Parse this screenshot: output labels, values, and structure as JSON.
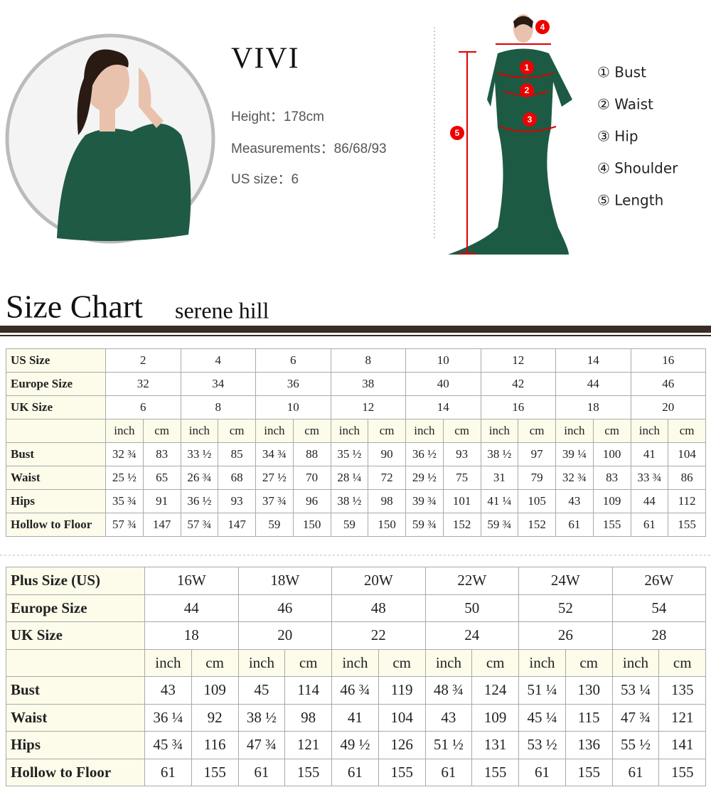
{
  "model": {
    "name": "VIVI",
    "lines": [
      "Height：178cm",
      "Measurements：86/68/93",
      "US size：6"
    ]
  },
  "diagram": {
    "markers": [
      "1",
      "2",
      "3",
      "4",
      "5"
    ],
    "legend": [
      "① Bust",
      "② Waist",
      "③ Hip",
      "④ Shoulder",
      "⑤ Length"
    ]
  },
  "heading": {
    "title": "Size Chart",
    "subtitle": "serene hill"
  },
  "table1": {
    "header_rows": [
      {
        "label": "US Size",
        "values": [
          "2",
          "4",
          "6",
          "8",
          "10",
          "12",
          "14",
          "16"
        ]
      },
      {
        "label": "Europe Size",
        "values": [
          "32",
          "34",
          "36",
          "38",
          "40",
          "42",
          "44",
          "46"
        ]
      },
      {
        "label": "UK Size",
        "values": [
          "6",
          "8",
          "10",
          "12",
          "14",
          "16",
          "18",
          "20"
        ]
      }
    ],
    "unit_row": [
      "inch",
      "cm",
      "inch",
      "cm",
      "inch",
      "cm",
      "inch",
      "cm",
      "inch",
      "cm",
      "inch",
      "cm",
      "inch",
      "cm",
      "inch",
      "cm"
    ],
    "rows": [
      {
        "label": "Bust",
        "values": [
          "32 ¾",
          "83",
          "33 ½",
          "85",
          "34 ¾",
          "88",
          "35 ½",
          "90",
          "36 ½",
          "93",
          "38 ½",
          "97",
          "39 ¼",
          "100",
          "41",
          "104"
        ]
      },
      {
        "label": "Waist",
        "values": [
          "25 ½",
          "65",
          "26 ¾",
          "68",
          "27 ½",
          "70",
          "28 ¼",
          "72",
          "29 ½",
          "75",
          "31",
          "79",
          "32 ¾",
          "83",
          "33 ¾",
          "86"
        ]
      },
      {
        "label": "Hips",
        "values": [
          "35 ¾",
          "91",
          "36 ½",
          "93",
          "37 ¾",
          "96",
          "38 ½",
          "98",
          "39 ¾",
          "101",
          "41 ¼",
          "105",
          "43",
          "109",
          "44",
          "112"
        ]
      },
      {
        "label": "Hollow to Floor",
        "values": [
          "57 ¾",
          "147",
          "57 ¾",
          "147",
          "59",
          "150",
          "59",
          "150",
          "59 ¾",
          "152",
          "59 ¾",
          "152",
          "61",
          "155",
          "61",
          "155"
        ]
      }
    ]
  },
  "table2": {
    "header_rows": [
      {
        "label": "Plus Size (US)",
        "values": [
          "16W",
          "18W",
          "20W",
          "22W",
          "24W",
          "26W"
        ]
      },
      {
        "label": "Europe Size",
        "values": [
          "44",
          "46",
          "48",
          "50",
          "52",
          "54"
        ]
      },
      {
        "label": "UK Size",
        "values": [
          "18",
          "20",
          "22",
          "24",
          "26",
          "28"
        ]
      }
    ],
    "unit_row": [
      "inch",
      "cm",
      "inch",
      "cm",
      "inch",
      "cm",
      "inch",
      "cm",
      "inch",
      "cm",
      "inch",
      "cm"
    ],
    "rows": [
      {
        "label": "Bust",
        "values": [
          "43",
          "109",
          "45",
          "114",
          "46 ¾",
          "119",
          "48 ¾",
          "124",
          "51 ¼",
          "130",
          "53 ¼",
          "135"
        ]
      },
      {
        "label": "Waist",
        "values": [
          "36 ¼",
          "92",
          "38 ½",
          "98",
          "41",
          "104",
          "43",
          "109",
          "45 ¼",
          "115",
          "47 ¾",
          "121"
        ]
      },
      {
        "label": "Hips",
        "values": [
          "45 ¾",
          "116",
          "47 ¾",
          "121",
          "49 ½",
          "126",
          "51 ½",
          "131",
          "53 ½",
          "136",
          "55 ½",
          "141"
        ]
      },
      {
        "label": "Hollow to Floor",
        "values": [
          "61",
          "155",
          "61",
          "155",
          "61",
          "155",
          "61",
          "155",
          "61",
          "155",
          "61",
          "155"
        ]
      }
    ]
  }
}
